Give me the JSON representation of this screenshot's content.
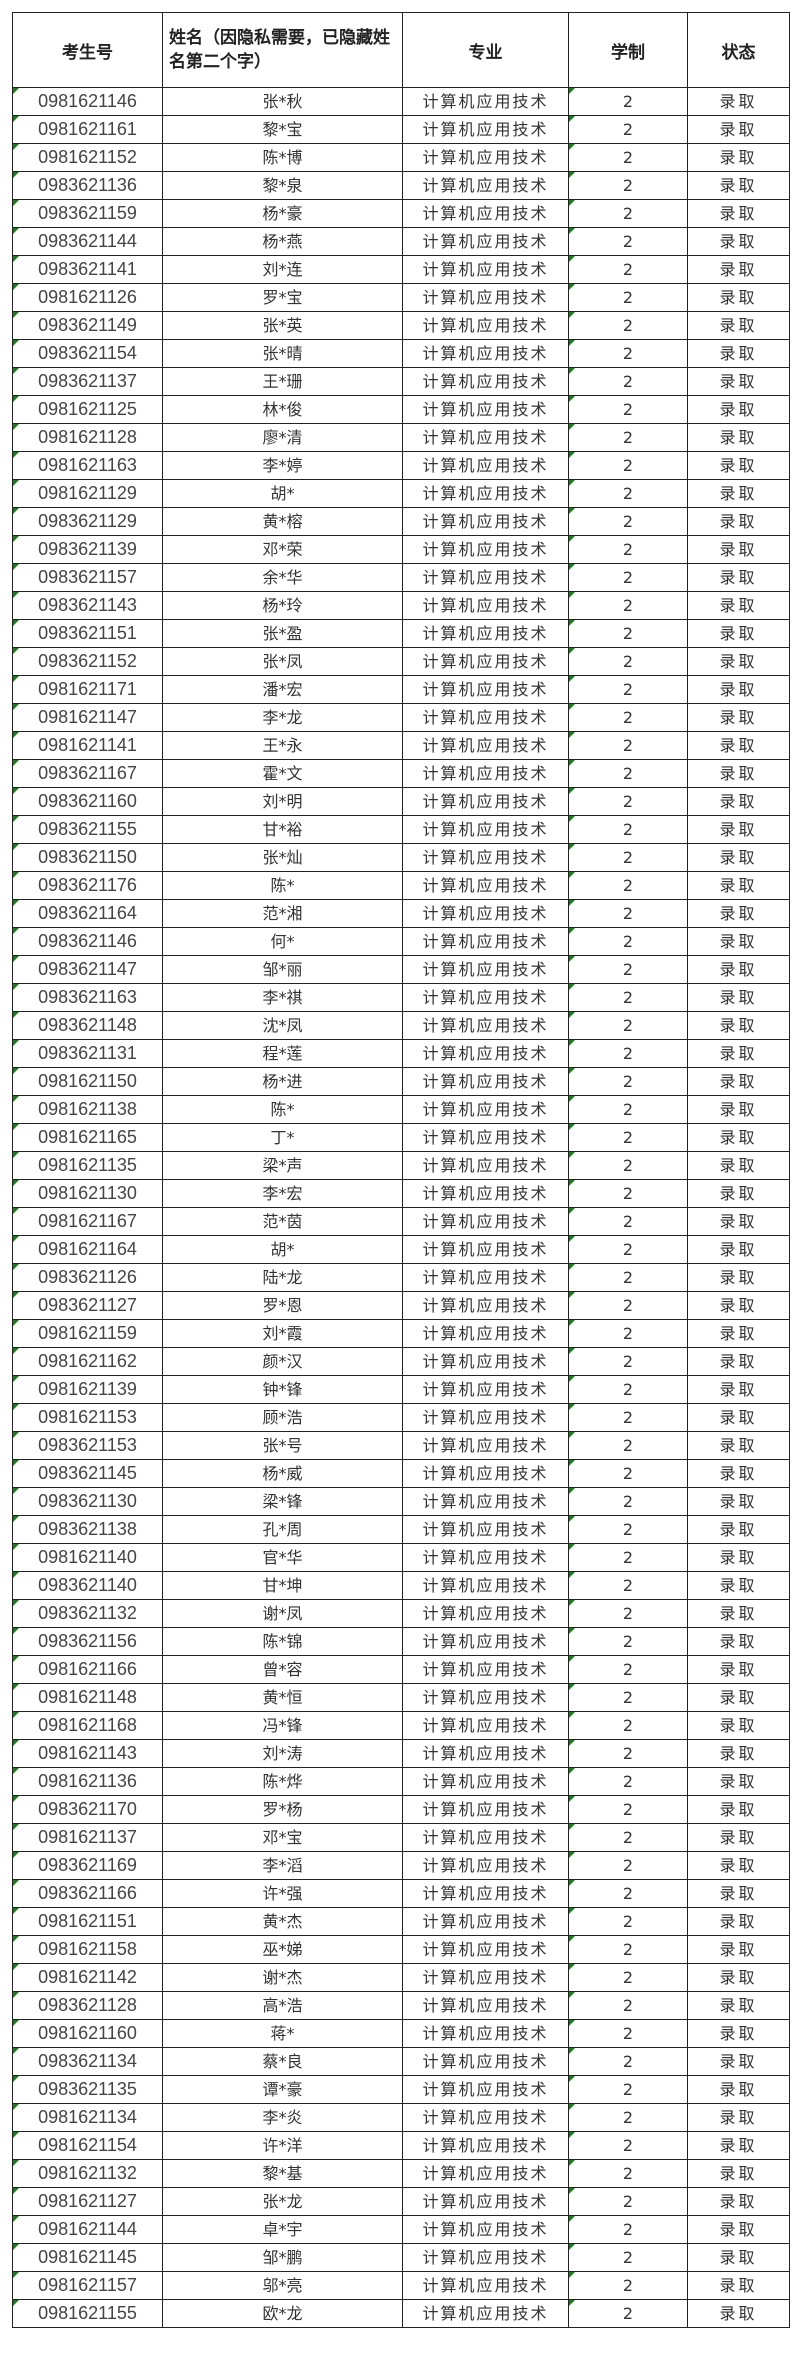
{
  "headers": [
    "考生号",
    "姓名（因隐私需要，已隐藏姓名第二个字）",
    "专业",
    "学制",
    "状态"
  ],
  "colors": {
    "border": "#222222",
    "cell_marker": "#1e7a1e"
  },
  "rows": [
    [
      "0981621146",
      "张*秋",
      "计算机应用技术",
      "2",
      "录取"
    ],
    [
      "0981621161",
      "黎*宝",
      "计算机应用技术",
      "2",
      "录取"
    ],
    [
      "0981621152",
      "陈*博",
      "计算机应用技术",
      "2",
      "录取"
    ],
    [
      "0983621136",
      "黎*泉",
      "计算机应用技术",
      "2",
      "录取"
    ],
    [
      "0983621159",
      "杨*豪",
      "计算机应用技术",
      "2",
      "录取"
    ],
    [
      "0983621144",
      "杨*燕",
      "计算机应用技术",
      "2",
      "录取"
    ],
    [
      "0983621141",
      "刘*连",
      "计算机应用技术",
      "2",
      "录取"
    ],
    [
      "0981621126",
      "罗*宝",
      "计算机应用技术",
      "2",
      "录取"
    ],
    [
      "0983621149",
      "张*英",
      "计算机应用技术",
      "2",
      "录取"
    ],
    [
      "0983621154",
      "张*晴",
      "计算机应用技术",
      "2",
      "录取"
    ],
    [
      "0983621137",
      "王*珊",
      "计算机应用技术",
      "2",
      "录取"
    ],
    [
      "0981621125",
      "林*俊",
      "计算机应用技术",
      "2",
      "录取"
    ],
    [
      "0981621128",
      "廖*清",
      "计算机应用技术",
      "2",
      "录取"
    ],
    [
      "0981621163",
      "李*婷",
      "计算机应用技术",
      "2",
      "录取"
    ],
    [
      "0981621129",
      "胡*",
      "计算机应用技术",
      "2",
      "录取"
    ],
    [
      "0983621129",
      "黄*榕",
      "计算机应用技术",
      "2",
      "录取"
    ],
    [
      "0983621139",
      "邓*荣",
      "计算机应用技术",
      "2",
      "录取"
    ],
    [
      "0983621157",
      "余*华",
      "计算机应用技术",
      "2",
      "录取"
    ],
    [
      "0983621143",
      "杨*玲",
      "计算机应用技术",
      "2",
      "录取"
    ],
    [
      "0983621151",
      "张*盈",
      "计算机应用技术",
      "2",
      "录取"
    ],
    [
      "0983621152",
      "张*凤",
      "计算机应用技术",
      "2",
      "录取"
    ],
    [
      "0981621171",
      "潘*宏",
      "计算机应用技术",
      "2",
      "录取"
    ],
    [
      "0981621147",
      "李*龙",
      "计算机应用技术",
      "2",
      "录取"
    ],
    [
      "0981621141",
      "王*永",
      "计算机应用技术",
      "2",
      "录取"
    ],
    [
      "0983621167",
      "霍*文",
      "计算机应用技术",
      "2",
      "录取"
    ],
    [
      "0983621160",
      "刘*明",
      "计算机应用技术",
      "2",
      "录取"
    ],
    [
      "0983621155",
      "甘*裕",
      "计算机应用技术",
      "2",
      "录取"
    ],
    [
      "0983621150",
      "张*灿",
      "计算机应用技术",
      "2",
      "录取"
    ],
    [
      "0983621176",
      "陈*",
      "计算机应用技术",
      "2",
      "录取"
    ],
    [
      "0983621164",
      "范*湘",
      "计算机应用技术",
      "2",
      "录取"
    ],
    [
      "0983621146",
      "何*",
      "计算机应用技术",
      "2",
      "录取"
    ],
    [
      "0983621147",
      "邹*丽",
      "计算机应用技术",
      "2",
      "录取"
    ],
    [
      "0983621163",
      "李*祺",
      "计算机应用技术",
      "2",
      "录取"
    ],
    [
      "0983621148",
      "沈*凤",
      "计算机应用技术",
      "2",
      "录取"
    ],
    [
      "0983621131",
      "程*莲",
      "计算机应用技术",
      "2",
      "录取"
    ],
    [
      "0981621150",
      "杨*进",
      "计算机应用技术",
      "2",
      "录取"
    ],
    [
      "0981621138",
      "陈*",
      "计算机应用技术",
      "2",
      "录取"
    ],
    [
      "0981621165",
      "丁*",
      "计算机应用技术",
      "2",
      "录取"
    ],
    [
      "0981621135",
      "梁*声",
      "计算机应用技术",
      "2",
      "录取"
    ],
    [
      "0981621130",
      "李*宏",
      "计算机应用技术",
      "2",
      "录取"
    ],
    [
      "0981621167",
      "范*茵",
      "计算机应用技术",
      "2",
      "录取"
    ],
    [
      "0981621164",
      "胡*",
      "计算机应用技术",
      "2",
      "录取"
    ],
    [
      "0983621126",
      "陆*龙",
      "计算机应用技术",
      "2",
      "录取"
    ],
    [
      "0983621127",
      "罗*恩",
      "计算机应用技术",
      "2",
      "录取"
    ],
    [
      "0981621159",
      "刘*霞",
      "计算机应用技术",
      "2",
      "录取"
    ],
    [
      "0981621162",
      "颜*汉",
      "计算机应用技术",
      "2",
      "录取"
    ],
    [
      "0981621139",
      "钟*锋",
      "计算机应用技术",
      "2",
      "录取"
    ],
    [
      "0981621153",
      "顾*浩",
      "计算机应用技术",
      "2",
      "录取"
    ],
    [
      "0983621153",
      "张*号",
      "计算机应用技术",
      "2",
      "录取"
    ],
    [
      "0983621145",
      "杨*威",
      "计算机应用技术",
      "2",
      "录取"
    ],
    [
      "0983621130",
      "梁*锋",
      "计算机应用技术",
      "2",
      "录取"
    ],
    [
      "0983621138",
      "孔*周",
      "计算机应用技术",
      "2",
      "录取"
    ],
    [
      "0981621140",
      "官*华",
      "计算机应用技术",
      "2",
      "录取"
    ],
    [
      "0983621140",
      "甘*坤",
      "计算机应用技术",
      "2",
      "录取"
    ],
    [
      "0983621132",
      "谢*凤",
      "计算机应用技术",
      "2",
      "录取"
    ],
    [
      "0983621156",
      "陈*锦",
      "计算机应用技术",
      "2",
      "录取"
    ],
    [
      "0981621166",
      "曾*容",
      "计算机应用技术",
      "2",
      "录取"
    ],
    [
      "0981621148",
      "黄*恒",
      "计算机应用技术",
      "2",
      "录取"
    ],
    [
      "0981621168",
      "冯*锋",
      "计算机应用技术",
      "2",
      "录取"
    ],
    [
      "0981621143",
      "刘*涛",
      "计算机应用技术",
      "2",
      "录取"
    ],
    [
      "0981621136",
      "陈*烨",
      "计算机应用技术",
      "2",
      "录取"
    ],
    [
      "0983621170",
      "罗*杨",
      "计算机应用技术",
      "2",
      "录取"
    ],
    [
      "0981621137",
      "邓*宝",
      "计算机应用技术",
      "2",
      "录取"
    ],
    [
      "0983621169",
      "李*滔",
      "计算机应用技术",
      "2",
      "录取"
    ],
    [
      "0983621166",
      "许*强",
      "计算机应用技术",
      "2",
      "录取"
    ],
    [
      "0981621151",
      "黄*杰",
      "计算机应用技术",
      "2",
      "录取"
    ],
    [
      "0981621158",
      "巫*娣",
      "计算机应用技术",
      "2",
      "录取"
    ],
    [
      "0981621142",
      "谢*杰",
      "计算机应用技术",
      "2",
      "录取"
    ],
    [
      "0983621128",
      "高*浩",
      "计算机应用技术",
      "2",
      "录取"
    ],
    [
      "0981621160",
      "蒋*",
      "计算机应用技术",
      "2",
      "录取"
    ],
    [
      "0983621134",
      "蔡*良",
      "计算机应用技术",
      "2",
      "录取"
    ],
    [
      "0983621135",
      "谭*豪",
      "计算机应用技术",
      "2",
      "录取"
    ],
    [
      "0981621134",
      "李*炎",
      "计算机应用技术",
      "2",
      "录取"
    ],
    [
      "0981621154",
      "许*洋",
      "计算机应用技术",
      "2",
      "录取"
    ],
    [
      "0981621132",
      "黎*基",
      "计算机应用技术",
      "2",
      "录取"
    ],
    [
      "0981621127",
      "张*龙",
      "计算机应用技术",
      "2",
      "录取"
    ],
    [
      "0981621144",
      "卓*宇",
      "计算机应用技术",
      "2",
      "录取"
    ],
    [
      "0981621145",
      "邹*鹏",
      "计算机应用技术",
      "2",
      "录取"
    ],
    [
      "0981621157",
      "邬*亮",
      "计算机应用技术",
      "2",
      "录取"
    ],
    [
      "0981621155",
      "欧*龙",
      "计算机应用技术",
      "2",
      "录取"
    ]
  ]
}
